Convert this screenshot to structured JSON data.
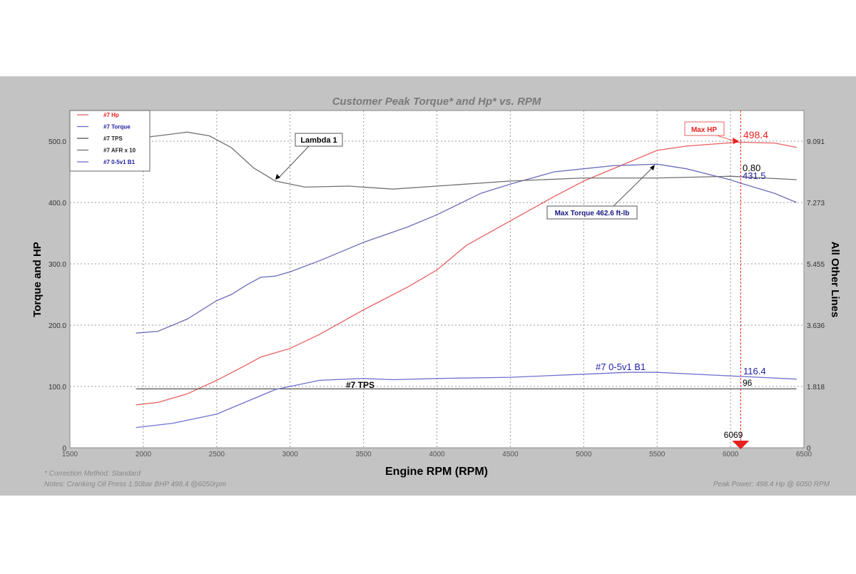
{
  "chart_data": {
    "type": "line",
    "title": "Customer Peak Torque* and Hp* vs. RPM",
    "xlabel": "Engine RPM (RPM)",
    "ylabel": "Torque and HP",
    "y2label": "All Other Lines",
    "xlim": [
      1500,
      6500
    ],
    "ylim": [
      0,
      550
    ],
    "y2lim": [
      0,
      10
    ],
    "xticks": [
      1500,
      2000,
      2500,
      3000,
      3500,
      4000,
      4500,
      5000,
      5500,
      6000,
      6500
    ],
    "yticks": [
      "0",
      "100.0",
      "200.0",
      "300.0",
      "400.0",
      "500.0"
    ],
    "y2ticks": [
      "0",
      "1.818",
      "3.636",
      "5.455",
      "7.273",
      "9.091"
    ],
    "grid": true,
    "legend_position": "top-left",
    "series": [
      {
        "name": "#7 Hp",
        "color": "#e86060",
        "axis": "left",
        "x": [
          1950,
          2100,
          2300,
          2500,
          2700,
          2800,
          3000,
          3200,
          3500,
          3800,
          4000,
          4200,
          4500,
          4800,
          5000,
          5300,
          5500,
          5700,
          6050,
          6300,
          6450
        ],
        "y": [
          70,
          74,
          88,
          110,
          135,
          148,
          162,
          185,
          225,
          262,
          290,
          330,
          370,
          410,
          435,
          465,
          485,
          492,
          498.4,
          497,
          490
        ]
      },
      {
        "name": "#7 Torque",
        "color": "#6c6cb8",
        "axis": "left",
        "x": [
          1950,
          2100,
          2300,
          2500,
          2600,
          2700,
          2800,
          2900,
          3000,
          3200,
          3500,
          3800,
          4000,
          4300,
          4500,
          4800,
          5000,
          5200,
          5500,
          5700,
          6000,
          6069,
          6300,
          6450
        ],
        "y": [
          187,
          190,
          210,
          240,
          250,
          265,
          278,
          280,
          287,
          305,
          335,
          360,
          380,
          415,
          430,
          450,
          455,
          460,
          462.6,
          455,
          437,
          431.5,
          415,
          400
        ]
      },
      {
        "name": "#7 TPS",
        "color": "#555555",
        "axis": "left",
        "x": [
          1950,
          6450
        ],
        "y": [
          96,
          96
        ]
      },
      {
        "name": "#7 AFR x 10",
        "color": "#707070",
        "axis": "right",
        "x": [
          1950,
          2100,
          2300,
          2450,
          2600,
          2750,
          2900,
          3100,
          3400,
          3700,
          4000,
          4500,
          5000,
          5500,
          6000,
          6450
        ],
        "y": [
          9.18,
          9.25,
          9.36,
          9.25,
          8.9,
          8.3,
          7.91,
          7.73,
          7.76,
          7.67,
          7.76,
          7.91,
          8.0,
          8.0,
          8.05,
          7.95
        ]
      },
      {
        "name": "#7 0-5v1 B1",
        "color": "#7070d0",
        "axis": "left",
        "x": [
          1950,
          2200,
          2500,
          2700,
          2900,
          3200,
          3500,
          3700,
          4000,
          4500,
          5000,
          5300,
          5500,
          6069,
          6450
        ],
        "y": [
          33,
          40,
          55,
          75,
          95,
          110,
          113,
          111,
          113,
          115,
          120,
          123,
          123,
          116.4,
          112
        ]
      }
    ],
    "cursor": {
      "rpm": "6069",
      "color": "#e82020"
    },
    "annotations": {
      "lambda": "Lambda 1",
      "max_hp": "Max HP",
      "max_torque": "Max Torque 462.6 ft-lb",
      "tps_label": "#7 TPS",
      "v_label": "#7 0-5v1 B1",
      "hp_value": "498.4",
      "lambda_value": "0.80",
      "torque_value": "431.5",
      "v_value": "116.4",
      "tps_value": "96"
    },
    "footer": {
      "correction": "* Correction Method: Standard",
      "notes": "Notes: Cranking Oil Press 1.50bar  BHP 498.4 @6050rpm",
      "peak": "Peak Power: 498.4 Hp @ 6050 RPM"
    }
  }
}
